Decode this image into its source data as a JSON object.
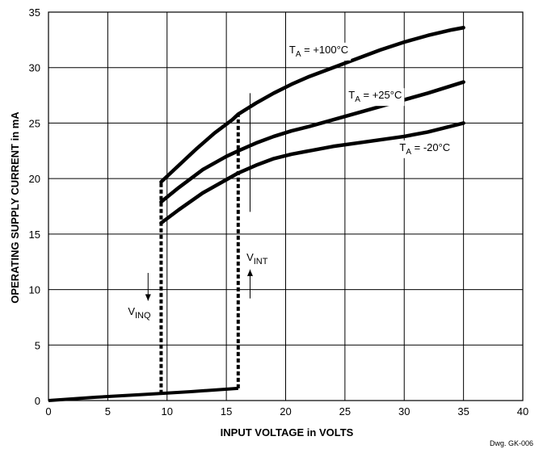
{
  "chart_data": {
    "type": "line",
    "xlabel": "INPUT VOLTAGE in VOLTS",
    "ylabel": "OPERATING SUPPLY CURRENT in mA",
    "xlim": [
      0,
      40
    ],
    "ylim": [
      0,
      35
    ],
    "x_ticks": [
      "0",
      "5",
      "10",
      "15",
      "20",
      "25",
      "30",
      "35",
      "40"
    ],
    "y_ticks": [
      "0",
      "5",
      "10",
      "15",
      "20",
      "25",
      "30",
      "35"
    ],
    "grid": true,
    "series": [
      {
        "name": "T_A = +100°C",
        "label_main": "T",
        "label_sub": "A",
        "label_rest": " = +100°C",
        "label_at": [
          20.3,
          31.3
        ],
        "x": [
          9.5,
          11.0,
          12.5,
          14.0,
          15.5,
          16.0,
          17.5,
          19.0,
          20.5,
          22.0,
          24.0,
          26.0,
          28.0,
          30.0,
          32.0,
          34.0,
          35.0
        ],
        "y": [
          19.7,
          21.2,
          22.7,
          24.1,
          25.3,
          25.8,
          26.8,
          27.7,
          28.5,
          29.2,
          30.0,
          30.8,
          31.6,
          32.3,
          32.9,
          33.4,
          33.6
        ]
      },
      {
        "name": "T_A = +25°C",
        "label_main": "T",
        "label_sub": "A",
        "label_rest": " = +25°C",
        "label_at": [
          25.3,
          27.2
        ],
        "x": [
          9.5,
          11.0,
          13.0,
          15.0,
          16.0,
          17.5,
          19.0,
          20.5,
          22.0,
          24.0,
          26.0,
          28.0,
          30.0,
          32.0,
          35.0
        ],
        "y": [
          17.9,
          19.2,
          20.8,
          22.0,
          22.5,
          23.2,
          23.8,
          24.3,
          24.7,
          25.3,
          25.9,
          26.5,
          27.1,
          27.7,
          28.7
        ]
      },
      {
        "name": "T_A = -20°C",
        "label_main": "T",
        "label_sub": "A",
        "label_rest": " = -20°C",
        "label_at": [
          29.6,
          22.5
        ],
        "x": [
          9.5,
          11.0,
          13.0,
          15.0,
          16.0,
          17.5,
          19.0,
          20.5,
          22.0,
          24.0,
          26.0,
          28.0,
          30.0,
          32.0,
          35.0
        ],
        "y": [
          16.0,
          17.2,
          18.7,
          19.9,
          20.5,
          21.2,
          21.8,
          22.2,
          22.5,
          22.9,
          23.2,
          23.5,
          23.8,
          24.2,
          25.0
        ]
      }
    ],
    "baseline": {
      "x": [
        0,
        4,
        8,
        12,
        16
      ],
      "y": [
        0,
        0.3,
        0.55,
        0.8,
        1.1
      ]
    },
    "hysteresis": {
      "v_inq_x": 9.5,
      "v_inq_y": [
        0.6,
        19.7
      ],
      "v_int_x": 16.0,
      "v_int_y": [
        1.1,
        25.8
      ]
    },
    "annotations": [
      {
        "main": "V",
        "sub": "INQ",
        "at": [
          6.7,
          7.7
        ],
        "arrow": "down",
        "arrow_x": 8.4,
        "arrow_y": [
          11.5,
          9.0
        ]
      },
      {
        "main": "V",
        "sub": "INT",
        "at": [
          16.7,
          12.6
        ],
        "arrow": "up",
        "arrow_x": 17.0,
        "arrow_y": [
          9.2,
          11.8
        ]
      }
    ],
    "guide_line": {
      "x": 17.0,
      "y": [
        17.0,
        27.7
      ]
    },
    "credit": "Dwg. GK-006"
  }
}
